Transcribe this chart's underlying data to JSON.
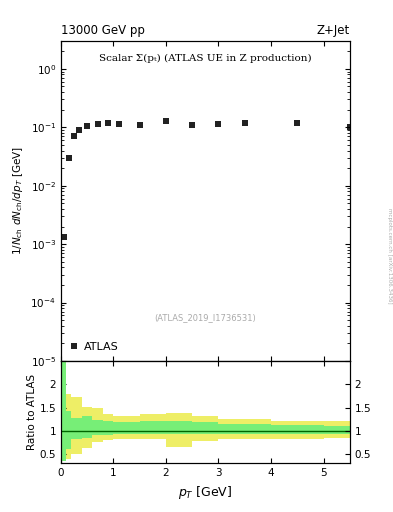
{
  "title_left": "13000 GeV pp",
  "title_right": "Z+Jet",
  "annotation": "Scalar Σ(pₜ) (ATLAS UE in Z production)",
  "ref_label": "(ATLAS_2019_I1736531)",
  "watermark": "mcplots.cern.ch [arXiv:1306.3436]",
  "ylabel_main": "1/N$_{ch}$ dN$_{ch}$/dp$_T$ [GeV]",
  "ylabel_ratio": "Ratio to ATLAS",
  "xlabel": "p$_T$ [GeV]",
  "legend_label": "ATLAS",
  "data_x": [
    0.05,
    0.15,
    0.25,
    0.35,
    0.5,
    0.7,
    0.9,
    1.1,
    1.5,
    2.0,
    2.5,
    3.0,
    3.5,
    4.5,
    5.5
  ],
  "data_y": [
    0.0013,
    0.03,
    0.07,
    0.09,
    0.105,
    0.115,
    0.12,
    0.115,
    0.11,
    0.13,
    0.11,
    0.115,
    0.12,
    0.12,
    0.1
  ],
  "ylim_main": [
    1e-05,
    3
  ],
  "ylim_ratio": [
    0.3,
    2.5
  ],
  "yticks_ratio": [
    0.5,
    1.0,
    1.5,
    2.0
  ],
  "xmax": 5.5,
  "ratio_bins_x": [
    0.0,
    0.1,
    0.2,
    0.4,
    0.6,
    0.8,
    1.0,
    1.5,
    2.0,
    2.5,
    3.0,
    3.5,
    4.0,
    5.0,
    5.5
  ],
  "green_low": [
    0.35,
    0.6,
    0.82,
    0.85,
    0.9,
    0.9,
    0.93,
    0.93,
    0.94,
    0.93,
    0.93,
    0.93,
    0.93,
    0.93
  ],
  "green_high": [
    2.5,
    1.42,
    1.28,
    1.32,
    1.24,
    1.2,
    1.18,
    1.2,
    1.22,
    1.18,
    1.15,
    1.15,
    1.12,
    1.1
  ],
  "yellow_low": [
    0.35,
    0.4,
    0.5,
    0.63,
    0.75,
    0.8,
    0.82,
    0.82,
    0.65,
    0.78,
    0.82,
    0.82,
    0.82,
    0.85
  ],
  "yellow_high": [
    2.5,
    1.8,
    1.72,
    1.52,
    1.5,
    1.35,
    1.32,
    1.35,
    1.38,
    1.32,
    1.25,
    1.25,
    1.22,
    1.2
  ],
  "marker_color": "#222222",
  "green_color": "#77ee77",
  "yellow_color": "#eeee66",
  "ratio_line_color": "#006600"
}
